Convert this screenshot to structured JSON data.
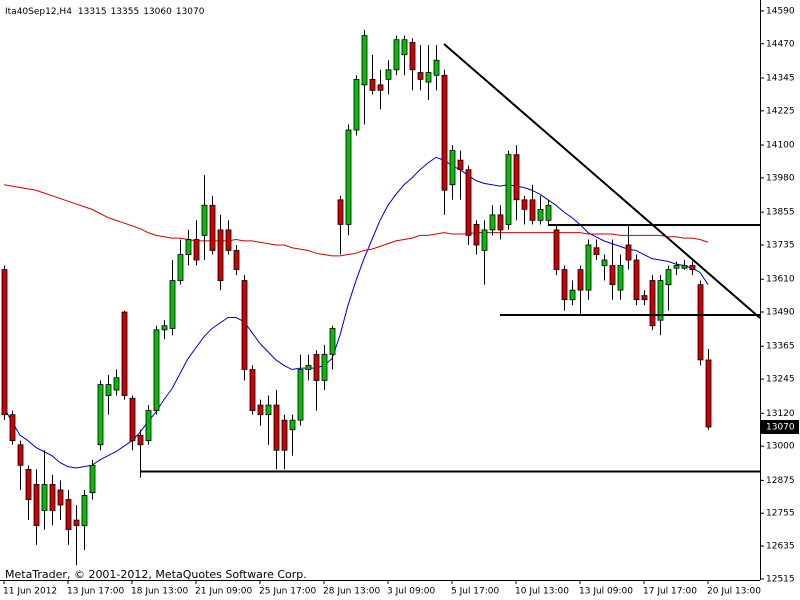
{
  "chart_data": {
    "type": "candlestick",
    "title": "Ita40Sep12,H4",
    "watermark": "MetaTrader, © 2001-2012, MetaQuotes Software Corp.",
    "categories": [
      "11 Jun 2012",
      null,
      null,
      null,
      null,
      null,
      null,
      null,
      "13 Jun 17:00",
      null,
      null,
      null,
      null,
      null,
      null,
      null,
      "18 Jun 13:00",
      null,
      null,
      null,
      null,
      null,
      null,
      null,
      "21 Jun 09:00",
      null,
      null,
      null,
      null,
      null,
      null,
      null,
      "25 Jun 17:00",
      null,
      null,
      null,
      null,
      null,
      null,
      null,
      "28 Jun 13:00",
      null,
      null,
      null,
      null,
      null,
      null,
      null,
      "3 Jul 09:00",
      null,
      null,
      null,
      null,
      null,
      null,
      null,
      "5 Jul 17:00",
      null,
      null,
      null,
      null,
      null,
      null,
      null,
      "10 Jul 13:00",
      null,
      null,
      null,
      null,
      null,
      null,
      null,
      "13 Jul 09:00",
      null,
      null,
      null,
      null,
      null,
      null,
      null,
      "17 Jul 17:00",
      null,
      null,
      null,
      null,
      null,
      null,
      null,
      "20 Jul 13:00"
    ],
    "open": [
      13645,
      13115,
      13005,
      12915,
      12860,
      12765,
      12860,
      12840,
      12805,
      12730,
      12710,
      12830,
      13005,
      13185,
      13205,
      13490,
      13175,
      13040,
      13020,
      13130,
      13425,
      13430,
      13605,
      13700,
      13755,
      13770,
      13880,
      13790,
      13790,
      13715,
      13605,
      13280,
      13150,
      13115,
      13150,
      13095,
      13060,
      13095,
      13280,
      13335,
      13240,
      13335,
      13900,
      13810,
      14155,
      14320,
      14340,
      14320,
      14340,
      14375,
      14430,
      14475,
      14365,
      14330,
      14355,
      14355,
      13955,
      14045,
      14010,
      13810,
      13715,
      13790,
      13845,
      13810,
      14065,
      13900,
      13900,
      13825,
      13825,
      13790,
      13645,
      13535,
      13645,
      13570,
      13725,
      13660,
      13660,
      13570,
      13735,
      13680,
      13550,
      13605,
      13460,
      13590,
      13650,
      13650,
      13660,
      13590,
      13315
    ],
    "high": [
      13660,
      13130,
      13020,
      12930,
      12915,
      12985,
      12895,
      12875,
      12840,
      12785,
      12840,
      12950,
      13240,
      13260,
      13280,
      13495,
      13185,
      13060,
      13150,
      13440,
      13460,
      13680,
      13755,
      13790,
      13825,
      13990,
      13915,
      13845,
      13825,
      13735,
      13625,
      13295,
      13170,
      13185,
      13205,
      13115,
      13115,
      13335,
      13335,
      13350,
      13370,
      13440,
      13915,
      14175,
      14355,
      14520,
      14430,
      14375,
      14410,
      14500,
      14500,
      14490,
      14465,
      14465,
      14465,
      14375,
      14100,
      14080,
      14025,
      13825,
      13825,
      13880,
      13880,
      14080,
      14100,
      13915,
      13955,
      13915,
      13900,
      13810,
      13660,
      13605,
      13660,
      13755,
      13755,
      13700,
      13755,
      13700,
      13810,
      13700,
      13570,
      13625,
      13625,
      13660,
      13675,
      13680,
      13675,
      13605,
      13355
    ],
    "low": [
      13095,
      13005,
      12840,
      12730,
      12640,
      12695,
      12710,
      12730,
      12640,
      12565,
      12620,
      12805,
      12985,
      13115,
      13185,
      13170,
      12985,
      12885,
      13005,
      13115,
      13390,
      13405,
      13590,
      13660,
      13660,
      13680,
      13700,
      13570,
      13700,
      13625,
      13240,
      13115,
      13075,
      13005,
      12915,
      12915,
      12965,
      13075,
      13240,
      13130,
      13205,
      13280,
      13700,
      13770,
      14135,
      14175,
      14285,
      14230,
      14285,
      14355,
      14355,
      14300,
      14300,
      14265,
      14300,
      13845,
      13900,
      13900,
      13735,
      13700,
      13590,
      13770,
      13755,
      13790,
      13825,
      13810,
      13810,
      13810,
      13810,
      13625,
      13495,
      13515,
      13480,
      13535,
      13680,
      13605,
      13535,
      13535,
      13645,
      13515,
      13515,
      13425,
      13405,
      13495,
      13625,
      13645,
      13625,
      13295,
      13060
    ],
    "close": [
      13115,
      13020,
      12930,
      12805,
      12710,
      12860,
      12765,
      12785,
      12695,
      12710,
      12820,
      12930,
      13225,
      13225,
      13250,
      13185,
      13020,
      13005,
      13130,
      13425,
      13440,
      13605,
      13700,
      13755,
      13680,
      13880,
      13715,
      13605,
      13715,
      13645,
      13280,
      13130,
      13115,
      13150,
      12985,
      12985,
      13095,
      13280,
      13295,
      13240,
      13335,
      13430,
      13810,
      14155,
      14340,
      14500,
      14300,
      14300,
      14375,
      14485,
      14485,
      14375,
      14340,
      14365,
      14410,
      13935,
      14080,
      14010,
      13770,
      13735,
      13790,
      13845,
      13790,
      14065,
      13900,
      13865,
      13825,
      13865,
      13880,
      13645,
      13535,
      13570,
      13570,
      13735,
      13700,
      13680,
      13590,
      13660,
      13680,
      13535,
      13535,
      13440,
      13605,
      13645,
      13660,
      13660,
      13645,
      13315,
      13070
    ],
    "color_up": "#00c000",
    "color_down": "#d00000",
    "overlays": [
      {
        "color": "#0000c8",
        "values": [
          13140,
          13090,
          13040,
          13020,
          12995,
          12980,
          12965,
          12940,
          12925,
          12920,
          12925,
          12930,
          12950,
          12965,
          12980,
          13000,
          13020,
          13050,
          13090,
          13125,
          13170,
          13210,
          13265,
          13320,
          13360,
          13400,
          13430,
          13450,
          13470,
          13470,
          13455,
          13415,
          13375,
          13345,
          13315,
          13295,
          13280,
          13285,
          13285,
          13285,
          13295,
          13320,
          13405,
          13515,
          13605,
          13685,
          13755,
          13825,
          13880,
          13920,
          13955,
          13980,
          14010,
          14035,
          14055,
          14045,
          14025,
          14010,
          13990,
          13970,
          13960,
          13955,
          13950,
          13955,
          13950,
          13945,
          13935,
          13920,
          13900,
          13880,
          13855,
          13835,
          13810,
          13780,
          13765,
          13750,
          13740,
          13730,
          13720,
          13715,
          13700,
          13685,
          13680,
          13675,
          13665,
          13660,
          13650,
          13635,
          13590
        ]
      },
      {
        "color": "#d00000",
        "values": [
          13955,
          13950,
          13945,
          13940,
          13935,
          13925,
          13915,
          13905,
          13895,
          13885,
          13875,
          13865,
          13850,
          13835,
          13825,
          13815,
          13805,
          13795,
          13780,
          13770,
          13765,
          13760,
          13760,
          13755,
          13750,
          13750,
          13750,
          13750,
          13750,
          13755,
          13750,
          13750,
          13745,
          13740,
          13735,
          13735,
          13725,
          13720,
          13715,
          13705,
          13700,
          13695,
          13695,
          13700,
          13705,
          13715,
          13720,
          13730,
          13740,
          13750,
          13755,
          13760,
          13770,
          13770,
          13775,
          13780,
          13775,
          13775,
          13775,
          13780,
          13780,
          13780,
          13780,
          13780,
          13780,
          13780,
          13780,
          13780,
          13780,
          13780,
          13780,
          13780,
          13780,
          13775,
          13775,
          13775,
          13775,
          13770,
          13770,
          13770,
          13770,
          13770,
          13770,
          13765,
          13765,
          13760,
          13760,
          13755,
          13745
        ]
      }
    ],
    "ylim": [
      12511,
      14630
    ],
    "yticks": [
      14590,
      14470,
      14345,
      14225,
      14100,
      13980,
      13855,
      13735,
      13610,
      13490,
      13365,
      13245,
      13120,
      13000,
      12875,
      12755,
      12635,
      12515
    ]
  }
}
